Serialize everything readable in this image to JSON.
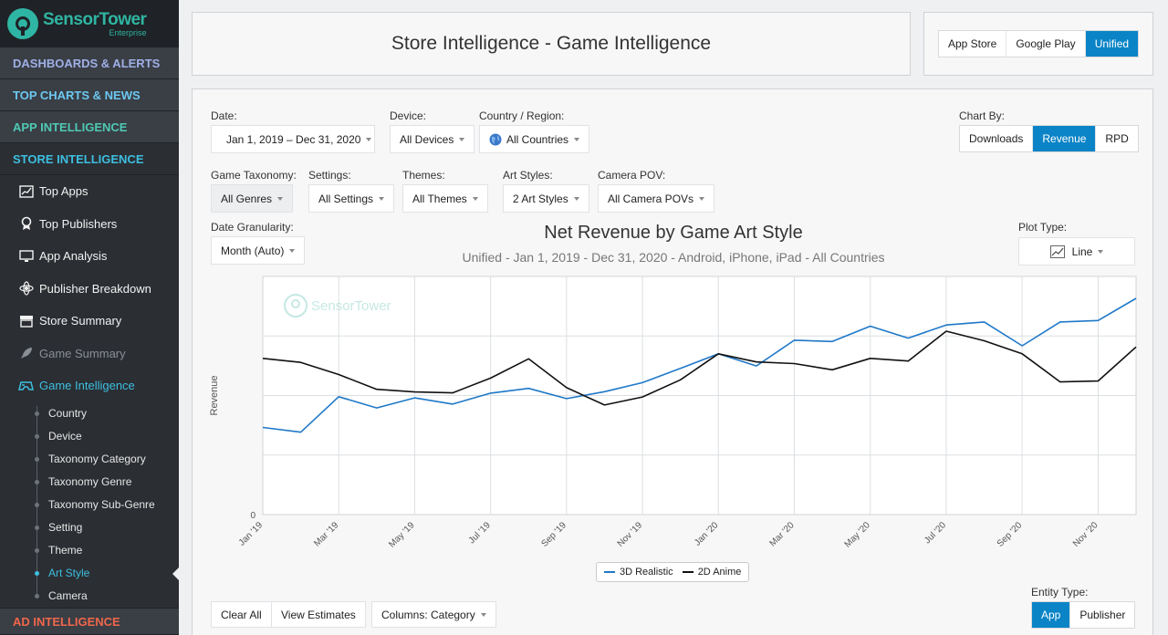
{
  "logo": {
    "name": "SensorTower",
    "sub": "Enterprise"
  },
  "nav": {
    "dashboards": "DASHBOARDS & ALERTS",
    "top_charts": "TOP CHARTS & NEWS",
    "app_intel": "APP INTELLIGENCE",
    "store_intel": "STORE INTELLIGENCE",
    "items": [
      {
        "label": "Top Apps",
        "icon": "chart-icon"
      },
      {
        "label": "Top Publishers",
        "icon": "award-icon"
      },
      {
        "label": "App Analysis",
        "icon": "monitor-icon"
      },
      {
        "label": "Publisher Breakdown",
        "icon": "atom-icon"
      },
      {
        "label": "Store Summary",
        "icon": "store-icon"
      },
      {
        "label": "Game Summary",
        "icon": "rocket-icon"
      },
      {
        "label": "Game Intelligence",
        "icon": "gamepad-icon"
      }
    ],
    "sub_items": [
      "Country",
      "Device",
      "Taxonomy Category",
      "Taxonomy Genre",
      "Taxonomy Sub-Genre",
      "Setting",
      "Theme",
      "Art Style",
      "Camera"
    ],
    "ad_intel": "AD INTELLIGENCE"
  },
  "header": {
    "title": "Store Intelligence - Game Intelligence"
  },
  "store_toggle": [
    "App Store",
    "Google Play",
    "Unified"
  ],
  "filters": {
    "date_label": "Date:",
    "date_value": "Jan 1, 2019 – Dec 31, 2020",
    "device_label": "Device:",
    "device_value": "All Devices",
    "country_label": "Country / Region:",
    "country_value": "All Countries",
    "chart_by_label": "Chart By:",
    "chart_by": [
      "Downloads",
      "Revenue",
      "RPD"
    ],
    "taxonomy_label": "Game Taxonomy:",
    "taxonomy_value": "All Genres",
    "settings_label": "Settings:",
    "settings_value": "All Settings",
    "themes_label": "Themes:",
    "themes_value": "All Themes",
    "art_label": "Art Styles:",
    "art_value": "2 Art Styles",
    "camera_label": "Camera POV:",
    "camera_value": "All Camera POVs",
    "gran_label": "Date Granularity:",
    "gran_value": "Month (Auto)",
    "plot_label": "Plot Type:",
    "plot_value": "Line"
  },
  "chart_data": {
    "type": "line",
    "title": "Net Revenue by Game Art Style",
    "subtitle": "Unified - Jan 1, 2019 - Dec 31, 2020 - Android, iPhone, iPad - All Countries",
    "ylabel": "Revenue",
    "y_tick_labels": [
      "0"
    ],
    "ylim": [
      0,
      100
    ],
    "tick_labels": [
      "Jan '19",
      "Mar '19",
      "May '19",
      "Jul '19",
      "Sep '19",
      "Nov '19",
      "Jan '20",
      "Mar '20",
      "May '20",
      "Jul '20",
      "Sep '20",
      "Nov '20"
    ],
    "grid": true,
    "legend": "bottom",
    "series": [
      {
        "name": "3D Realistic",
        "color": "#1f78c8",
        "values": [
          36.6,
          34.6,
          49.5,
          44.8,
          49.0,
          46.4,
          51.0,
          53.0,
          48.7,
          51.6,
          55.4,
          61.4,
          67.5,
          62.4,
          73.2,
          72.7,
          79.1,
          74.1,
          79.6,
          80.9,
          70.9,
          80.9,
          81.5,
          90.8
        ]
      },
      {
        "name": "2D Anime",
        "color": "#111111",
        "values": [
          65.6,
          63.9,
          58.8,
          52.6,
          51.5,
          51.1,
          57.3,
          65.4,
          53.3,
          46.0,
          49.4,
          56.6,
          67.5,
          64.1,
          63.4,
          60.8,
          65.6,
          64.5,
          77.0,
          73.0,
          67.5,
          55.7,
          56.1,
          70.4
        ]
      }
    ]
  },
  "actions": {
    "clear": "Clear All",
    "view": "View Estimates",
    "columns": "Columns: Category"
  },
  "entity": {
    "label": "Entity Type:",
    "options": [
      "App",
      "Publisher"
    ]
  },
  "watermark": "SensorTower"
}
